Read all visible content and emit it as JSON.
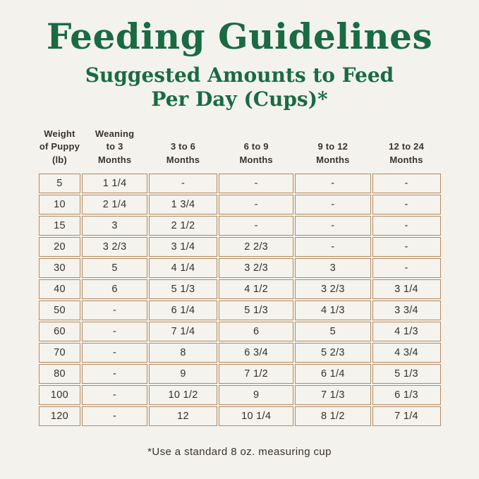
{
  "page": {
    "title": "Feeding Guidelines",
    "subtitle_line1": "Suggested Amounts to Feed",
    "subtitle_line2": "Per Day (Cups)*",
    "footnote": "*Use a standard 8 oz. measuring cup"
  },
  "colors": {
    "background": "#f3f2ec",
    "heading_green": "#1a6a43",
    "table_border_tan": "#b58a5f",
    "text_dark": "#3a3331"
  },
  "chart_data": {
    "type": "table",
    "title": "Feeding Guidelines — Suggested Amounts to Feed Per Day (Cups)",
    "columns": [
      "Weight\nof Puppy\n(lb)",
      "Weaning\nto 3\nMonths",
      "3 to 6\nMonths",
      "6 to 9\nMonths",
      "9 to 12\nMonths",
      "12 to 24\nMonths"
    ],
    "rows": [
      [
        "5",
        "1 1/4",
        "-",
        "-",
        "-",
        "-"
      ],
      [
        "10",
        "2 1/4",
        "1 3/4",
        "-",
        "-",
        "-"
      ],
      [
        "15",
        "3",
        "2 1/2",
        "-",
        "-",
        "-"
      ],
      [
        "20",
        "3 2/3",
        "3 1/4",
        "2 2/3",
        "-",
        "-"
      ],
      [
        "30",
        "5",
        "4 1/4",
        "3 2/3",
        "3",
        "-"
      ],
      [
        "40",
        "6",
        "5 1/3",
        "4 1/2",
        "3 2/3",
        "3 1/4"
      ],
      [
        "50",
        "-",
        "6 1/4",
        "5 1/3",
        "4 1/3",
        "3 3/4"
      ],
      [
        "60",
        "-",
        "7 1/4",
        "6",
        "5",
        "4 1/3"
      ],
      [
        "70",
        "-",
        "8",
        "6 3/4",
        "5 2/3",
        "4 3/4"
      ],
      [
        "80",
        "-",
        "9",
        "7 1/2",
        "6 1/4",
        "5 1/3"
      ],
      [
        "100",
        "-",
        "10 1/2",
        "9",
        "7 1/3",
        "6 1/3"
      ],
      [
        "120",
        "-",
        "12",
        "10 1/4",
        "8 1/2",
        "7 1/4"
      ]
    ],
    "footnote": "*Use a standard 8 oz. measuring cup",
    "layout": {
      "grid": true,
      "cell_borders": "separated",
      "header_position": "top"
    }
  }
}
